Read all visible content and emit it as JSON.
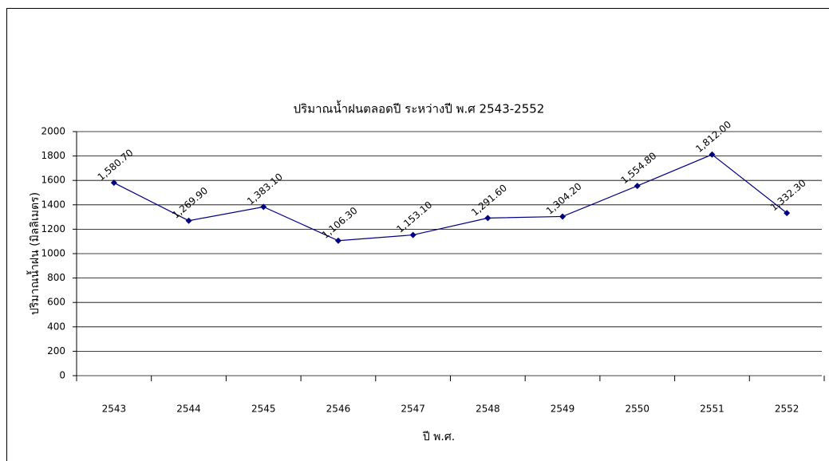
{
  "chart_data": {
    "type": "line",
    "title": "ปริมาณน้ำฝนตลอดปี ระหว่างปี พ.ศ 2543-2552",
    "x_label": "ปี พ.ศ.",
    "y_label": "ปริมาณน้ำฝน (มิลลิเมตร)",
    "categories": [
      "2543",
      "2544",
      "2545",
      "2546",
      "2547",
      "2548",
      "2549",
      "2550",
      "2551",
      "2552"
    ],
    "values": [
      1580.7,
      1269.9,
      1383.1,
      1106.3,
      1153.1,
      1291.6,
      1304.2,
      1554.8,
      1812.0,
      1332.3
    ],
    "value_labels": [
      "1,580.70",
      "1,269.90",
      "1,383.10",
      "1,106.30",
      "1,153.10",
      "1,291.60",
      "1,304.20",
      "1,554.80",
      "1,812.00",
      "1,332.30"
    ],
    "color": "#000080",
    "ylim": [
      0,
      2000
    ],
    "yticks": [
      0,
      200,
      400,
      600,
      800,
      1000,
      1200,
      1400,
      1600,
      1800,
      2000
    ],
    "grid": true
  }
}
